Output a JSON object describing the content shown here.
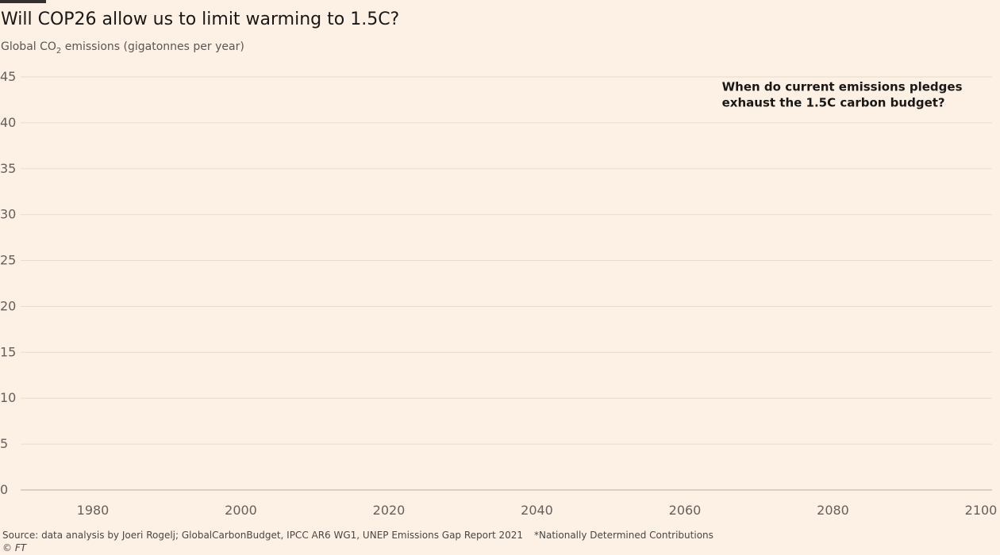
{
  "header": {
    "title": "Will COP26 allow us to limit warming to 1.5C?",
    "subtitle_prefix": "Global CO",
    "subtitle_sub": "2",
    "subtitle_suffix": " emissions (gigatonnes per year)"
  },
  "footer": {
    "source": "Source: data analysis by Joeri Rogelj; GlobalCarbonBudget, IPCC AR6 WG1, UNEP Emissions Gap Report 2021",
    "note": "*Nationally Determined Contributions",
    "copyright": "© FT"
  },
  "colors": {
    "background": "#fdf1e5",
    "gridline": "#e7dccf",
    "baseline": "#b9ada1",
    "tick_text": "#66605c",
    "annotation_text": "#1a1817"
  },
  "chart_data": {
    "type": "line",
    "title": "Will COP26 allow us to limit warming to 1.5C?",
    "ylabel": "Global CO2 emissions (gigatonnes per year)",
    "xlabel": "",
    "xlim": [
      1970,
      2100
    ],
    "ylim": [
      0,
      45
    ],
    "x_ticks": [
      "1980",
      "2000",
      "2020",
      "2040",
      "2060",
      "2080",
      "2100"
    ],
    "x_tick_values": [
      1980,
      2000,
      2020,
      2040,
      2060,
      2080,
      2100
    ],
    "y_ticks": [
      "0",
      "5",
      "10",
      "15",
      "20",
      "25",
      "30",
      "35",
      "40",
      "45"
    ],
    "y_tick_values": [
      0,
      5,
      10,
      15,
      20,
      25,
      30,
      35,
      40,
      45
    ],
    "grid": true,
    "series": [],
    "annotation": {
      "lines": [
        "When do current emissions pledges",
        "exhaust the 1.5C carbon budget?"
      ],
      "x": 2065,
      "y": 43.5
    }
  }
}
